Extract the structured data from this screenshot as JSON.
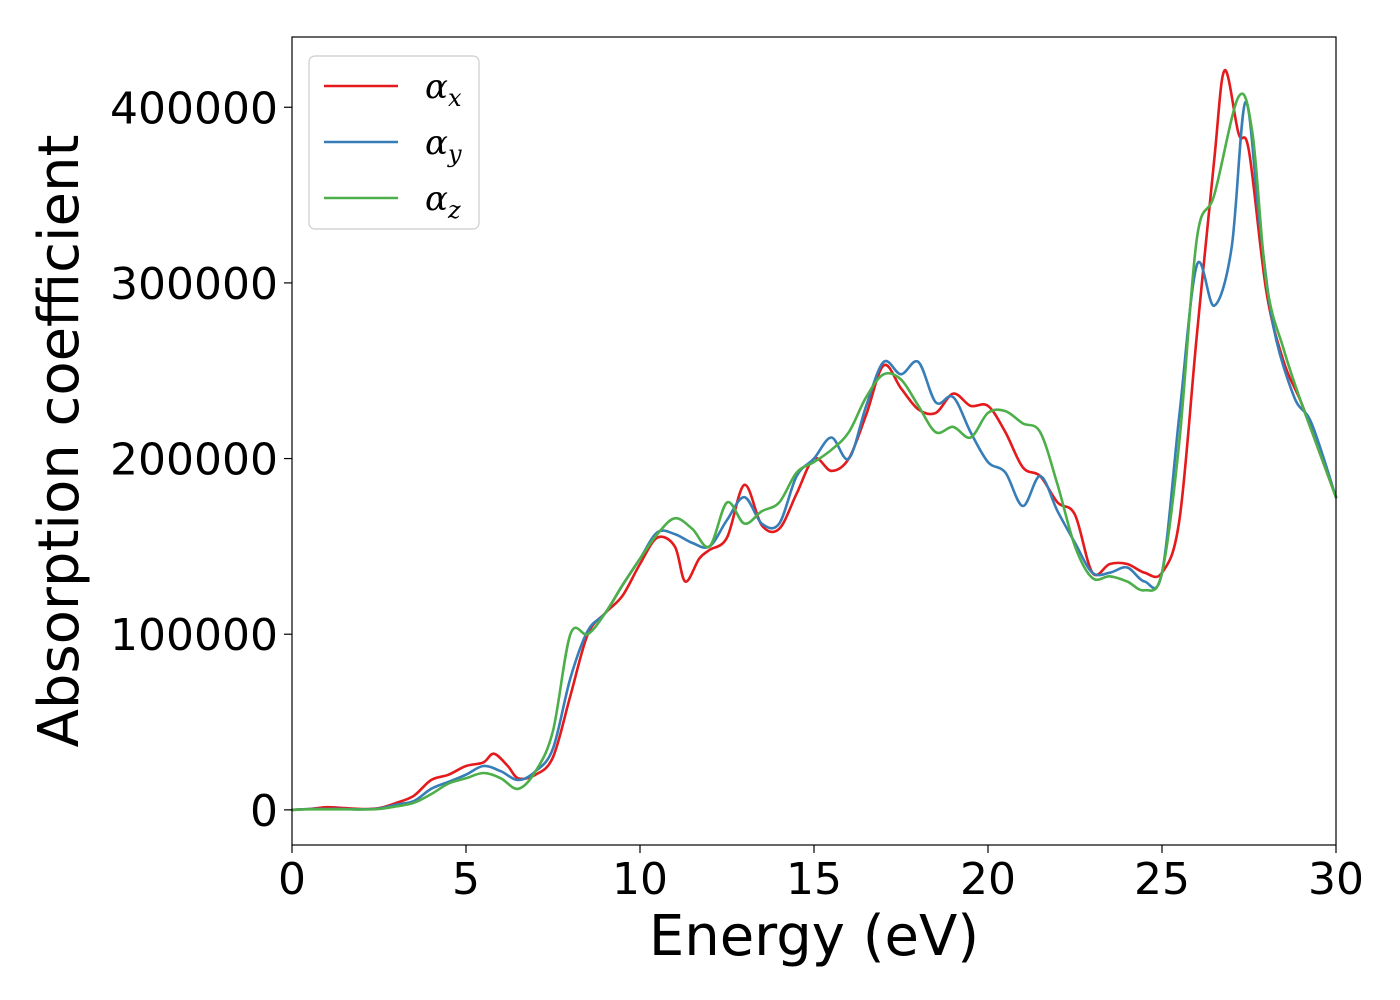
{
  "chart_data": {
    "type": "line",
    "title": "",
    "xlabel": "Energy (eV)",
    "ylabel": "Absorption coefficient",
    "xlim": [
      0,
      30
    ],
    "ylim": [
      -20000,
      440000
    ],
    "xticks": [
      0,
      5,
      10,
      15,
      20,
      25,
      30
    ],
    "yticks": [
      0,
      100000,
      200000,
      300000,
      400000
    ],
    "grid": false,
    "legend_position": "top-left",
    "series": [
      {
        "name": "α",
        "subscript": "x",
        "color": "#e41a1c",
        "points": [
          [
            0,
            0
          ],
          [
            0.5,
            500
          ],
          [
            1,
            1500
          ],
          [
            1.5,
            1000
          ],
          [
            2,
            500
          ],
          [
            2.5,
            1000
          ],
          [
            3,
            4000
          ],
          [
            3.5,
            8000
          ],
          [
            4,
            17000
          ],
          [
            4.5,
            20000
          ],
          [
            5,
            25000
          ],
          [
            5.5,
            27000
          ],
          [
            5.8,
            32000
          ],
          [
            6.2,
            25000
          ],
          [
            6.5,
            18000
          ],
          [
            7,
            20000
          ],
          [
            7.5,
            30000
          ],
          [
            8,
            65000
          ],
          [
            8.5,
            100000
          ],
          [
            9,
            112000
          ],
          [
            9.5,
            122000
          ],
          [
            10,
            140000
          ],
          [
            10.5,
            155000
          ],
          [
            11,
            150000
          ],
          [
            11.3,
            130000
          ],
          [
            11.7,
            143000
          ],
          [
            12,
            148000
          ],
          [
            12.5,
            155000
          ],
          [
            13,
            185000
          ],
          [
            13.5,
            162000
          ],
          [
            14,
            160000
          ],
          [
            14.5,
            180000
          ],
          [
            15,
            200000
          ],
          [
            15.5,
            193000
          ],
          [
            16,
            200000
          ],
          [
            16.5,
            225000
          ],
          [
            17,
            253000
          ],
          [
            17.5,
            240000
          ],
          [
            18,
            228000
          ],
          [
            18.5,
            226000
          ],
          [
            19,
            237000
          ],
          [
            19.5,
            230000
          ],
          [
            20,
            230000
          ],
          [
            20.5,
            215000
          ],
          [
            21,
            195000
          ],
          [
            21.5,
            190000
          ],
          [
            22,
            175000
          ],
          [
            22.5,
            168000
          ],
          [
            23,
            135000
          ],
          [
            23.5,
            140000
          ],
          [
            24,
            140000
          ],
          [
            24.5,
            135000
          ],
          [
            25,
            135000
          ],
          [
            25.5,
            165000
          ],
          [
            26,
            270000
          ],
          [
            26.5,
            370000
          ],
          [
            26.8,
            421000
          ],
          [
            27.2,
            385000
          ],
          [
            27.5,
            375000
          ],
          [
            28,
            295000
          ],
          [
            28.5,
            255000
          ],
          [
            29,
            232000
          ],
          [
            29.5,
            205000
          ],
          [
            30,
            178000
          ]
        ]
      },
      {
        "name": "α",
        "subscript": "y",
        "color": "#377eb8",
        "points": [
          [
            0,
            0
          ],
          [
            0.5,
            500
          ],
          [
            1,
            500
          ],
          [
            1.5,
            500
          ],
          [
            2,
            300
          ],
          [
            2.5,
            800
          ],
          [
            3,
            3000
          ],
          [
            3.5,
            5000
          ],
          [
            4,
            12000
          ],
          [
            4.5,
            16000
          ],
          [
            5,
            20000
          ],
          [
            5.5,
            25000
          ],
          [
            6,
            22000
          ],
          [
            6.5,
            17000
          ],
          [
            7,
            22000
          ],
          [
            7.5,
            35000
          ],
          [
            8,
            75000
          ],
          [
            8.5,
            102000
          ],
          [
            9,
            112000
          ],
          [
            9.5,
            128000
          ],
          [
            10,
            143000
          ],
          [
            10.5,
            158000
          ],
          [
            11,
            157000
          ],
          [
            11.5,
            152000
          ],
          [
            12,
            150000
          ],
          [
            12.5,
            165000
          ],
          [
            13,
            178000
          ],
          [
            13.5,
            163000
          ],
          [
            14,
            163000
          ],
          [
            14.5,
            190000
          ],
          [
            15,
            200000
          ],
          [
            15.5,
            212000
          ],
          [
            16,
            200000
          ],
          [
            16.5,
            230000
          ],
          [
            17,
            255000
          ],
          [
            17.5,
            248000
          ],
          [
            18,
            255000
          ],
          [
            18.5,
            232000
          ],
          [
            19,
            235000
          ],
          [
            19.5,
            215000
          ],
          [
            20,
            198000
          ],
          [
            20.5,
            192000
          ],
          [
            21,
            173000
          ],
          [
            21.5,
            190000
          ],
          [
            22,
            170000
          ],
          [
            22.5,
            152000
          ],
          [
            23,
            135000
          ],
          [
            23.5,
            135000
          ],
          [
            24,
            138000
          ],
          [
            24.5,
            130000
          ],
          [
            25,
            135000
          ],
          [
            25.5,
            225000
          ],
          [
            26,
            310000
          ],
          [
            26.5,
            287000
          ],
          [
            27,
            320000
          ],
          [
            27.4,
            403000
          ],
          [
            27.8,
            335000
          ],
          [
            28.2,
            275000
          ],
          [
            28.8,
            235000
          ],
          [
            29.3,
            220000
          ],
          [
            30,
            178000
          ]
        ]
      },
      {
        "name": "α",
        "subscript": "z",
        "color": "#4daf4a",
        "points": [
          [
            0,
            0
          ],
          [
            0.5,
            300
          ],
          [
            1,
            300
          ],
          [
            1.5,
            300
          ],
          [
            2,
            200
          ],
          [
            2.5,
            500
          ],
          [
            3,
            2000
          ],
          [
            3.5,
            4000
          ],
          [
            4,
            9000
          ],
          [
            4.5,
            15000
          ],
          [
            5,
            18000
          ],
          [
            5.5,
            21000
          ],
          [
            6,
            18000
          ],
          [
            6.5,
            12000
          ],
          [
            7,
            22000
          ],
          [
            7.5,
            45000
          ],
          [
            8,
            100000
          ],
          [
            8.5,
            100000
          ],
          [
            9,
            112000
          ],
          [
            9.5,
            128000
          ],
          [
            10,
            143000
          ],
          [
            10.5,
            157000
          ],
          [
            11,
            166000
          ],
          [
            11.5,
            160000
          ],
          [
            12,
            150000
          ],
          [
            12.5,
            175000
          ],
          [
            13,
            163000
          ],
          [
            13.5,
            170000
          ],
          [
            14,
            175000
          ],
          [
            14.5,
            192000
          ],
          [
            15,
            198000
          ],
          [
            15.5,
            205000
          ],
          [
            16,
            215000
          ],
          [
            16.5,
            235000
          ],
          [
            17,
            248000
          ],
          [
            17.5,
            245000
          ],
          [
            18,
            230000
          ],
          [
            18.5,
            215000
          ],
          [
            19,
            218000
          ],
          [
            19.5,
            212000
          ],
          [
            20,
            226000
          ],
          [
            20.5,
            227000
          ],
          [
            21,
            220000
          ],
          [
            21.5,
            215000
          ],
          [
            22,
            185000
          ],
          [
            22.5,
            150000
          ],
          [
            23,
            132000
          ],
          [
            23.5,
            133000
          ],
          [
            24,
            130000
          ],
          [
            24.5,
            125000
          ],
          [
            25,
            135000
          ],
          [
            25.5,
            210000
          ],
          [
            26,
            325000
          ],
          [
            26.5,
            350000
          ],
          [
            27.2,
            406000
          ],
          [
            27.6,
            385000
          ],
          [
            28,
            300000
          ],
          [
            28.5,
            262000
          ],
          [
            29,
            232000
          ],
          [
            29.5,
            205000
          ],
          [
            30,
            178000
          ]
        ]
      }
    ]
  }
}
